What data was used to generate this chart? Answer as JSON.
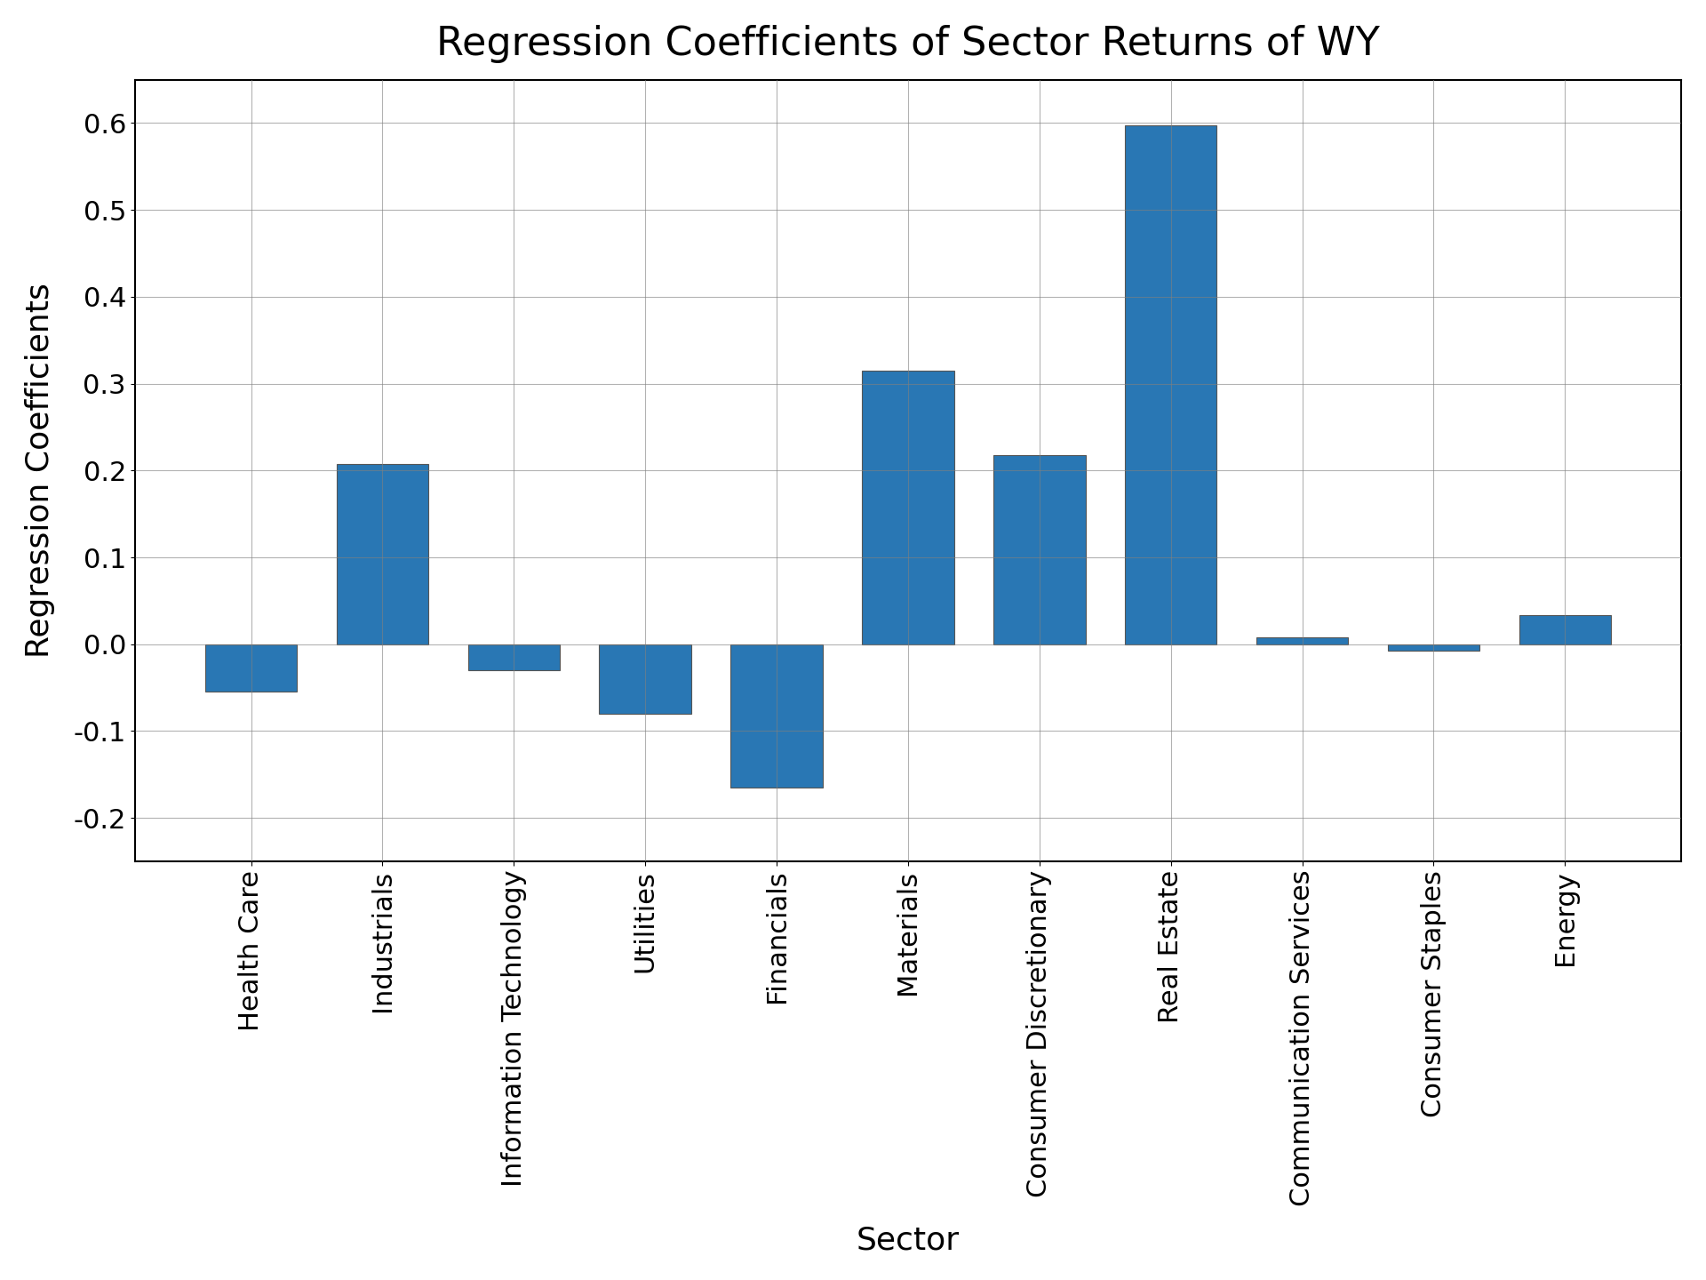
{
  "title": "Regression Coefficients of Sector Returns of WY",
  "xlabel": "Sector",
  "ylabel": "Regression Coefficients",
  "categories": [
    "Health Care",
    "Industrials",
    "Information Technology",
    "Utilities",
    "Financials",
    "Materials",
    "Consumer Discretionary",
    "Real Estate",
    "Communication Services",
    "Consumer Staples",
    "Energy"
  ],
  "values": [
    -0.055,
    0.207,
    -0.03,
    -0.08,
    -0.165,
    0.315,
    0.218,
    0.597,
    0.008,
    -0.007,
    0.033
  ],
  "bar_color": "#2977b4",
  "bar_edgecolor": "#555555",
  "ylim": [
    -0.25,
    0.65
  ],
  "yticks": [
    -0.2,
    -0.1,
    0.0,
    0.1,
    0.2,
    0.3,
    0.4,
    0.5,
    0.6
  ],
  "title_fontsize": 32,
  "label_fontsize": 26,
  "tick_fontsize": 22,
  "xtick_fontsize": 22,
  "figsize": [
    19.2,
    14.4
  ],
  "dpi": 100,
  "grid": true
}
